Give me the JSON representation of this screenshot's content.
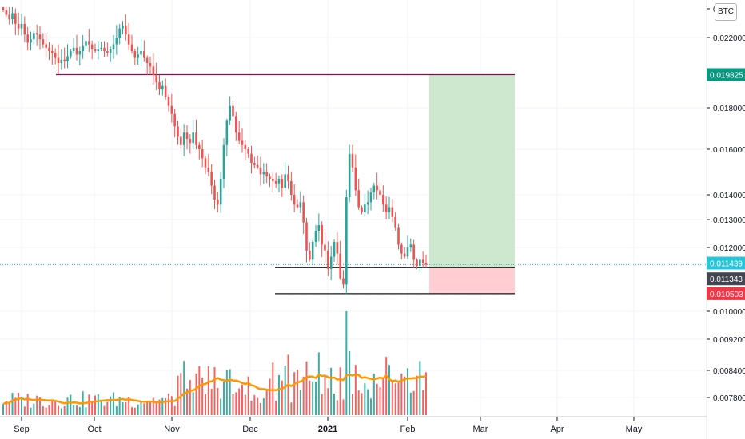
{
  "currency_badge": "BTC",
  "chart_data": {
    "type": "candlestick",
    "quote_currency": "BTC",
    "x_axis_labels": [
      {
        "label": "Sep",
        "bold": false
      },
      {
        "label": "Oct",
        "bold": false
      },
      {
        "label": "Nov",
        "bold": false
      },
      {
        "label": "Dec",
        "bold": false
      },
      {
        "label": "2021",
        "bold": true
      },
      {
        "label": "Feb",
        "bold": false
      },
      {
        "label": "Mar",
        "bold": false
      },
      {
        "label": "Apr",
        "bold": false
      },
      {
        "label": "May",
        "bold": false
      }
    ],
    "y_axis_ticks": [
      "0.022000",
      "0.018000",
      "0.016000",
      "0.014000",
      "0.013000",
      "0.012000",
      "0.010000",
      "0.009200",
      "0.008400",
      "0.007800"
    ],
    "y_axis_partial_top_label": "0.0",
    "price_labels": [
      {
        "value": "0.019825",
        "color": "#089981",
        "role": "target"
      },
      {
        "value": "0.011439",
        "color": "#26c6da",
        "role": "last price"
      },
      {
        "value": "0.011343",
        "color": "#434651",
        "role": "entry"
      },
      {
        "value": "0.010503",
        "color": "#f23645",
        "role": "stop"
      }
    ],
    "levels": {
      "resistance": 0.019825,
      "entry": 0.011343,
      "stop": 0.010503,
      "last_price": 0.011439
    },
    "price_series_close": [
      0.0238,
      0.0235,
      0.0232,
      0.0236,
      0.0229,
      0.0226,
      0.0229,
      0.0222,
      0.0217,
      0.0219,
      0.0223,
      0.0222,
      0.0219,
      0.0216,
      0.0214,
      0.0212,
      0.0211,
      0.0208,
      0.0205,
      0.0207,
      0.0206,
      0.0209,
      0.0212,
      0.0214,
      0.021,
      0.0212,
      0.0215,
      0.0218,
      0.0216,
      0.0213,
      0.0212,
      0.0213,
      0.0214,
      0.0212,
      0.0211,
      0.0213,
      0.0216,
      0.022,
      0.0226,
      0.0228,
      0.0222,
      0.0216,
      0.0212,
      0.0208,
      0.021,
      0.0212,
      0.0208,
      0.0205,
      0.0203,
      0.0198,
      0.0194,
      0.019,
      0.0192,
      0.0186,
      0.0181,
      0.0177,
      0.0171,
      0.0166,
      0.0162,
      0.0168,
      0.0165,
      0.0163,
      0.0168,
      0.0162,
      0.016,
      0.0156,
      0.0152,
      0.015,
      0.0144,
      0.0138,
      0.0136,
      0.0147,
      0.0162,
      0.0174,
      0.0181,
      0.0176,
      0.0168,
      0.0164,
      0.0162,
      0.016,
      0.0158,
      0.0154,
      0.0153,
      0.0152,
      0.0149,
      0.015,
      0.0148,
      0.0147,
      0.0146,
      0.0145,
      0.0147,
      0.0143,
      0.0149,
      0.0146,
      0.014,
      0.0136,
      0.0135,
      0.0137,
      0.0129,
      0.0119,
      0.0116,
      0.0122,
      0.0126,
      0.0128,
      0.0121,
      0.0119,
      0.0113,
      0.0117,
      0.0122,
      0.0118,
      0.011,
      0.0108,
      0.0139,
      0.0158,
      0.0152,
      0.0142,
      0.0135,
      0.0133,
      0.0136,
      0.0137,
      0.0141,
      0.0144,
      0.0142,
      0.014,
      0.0136,
      0.0133,
      0.0135,
      0.0131,
      0.0127,
      0.0121,
      0.0118,
      0.0117,
      0.012,
      0.0121,
      0.0116,
      0.0114,
      0.0116,
      0.0115,
      0.01144
    ],
    "volume_ma_color": "#ff9800",
    "up_color": "#26a69a",
    "down_color": "#ef5350",
    "target_zone_color": "#c8e6c9",
    "stop_zone_color": "#ffcdd2"
  }
}
